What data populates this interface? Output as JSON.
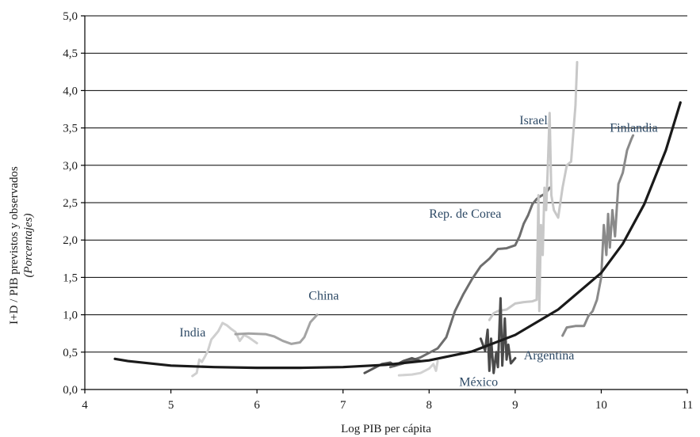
{
  "chart_data": {
    "type": "line",
    "xlabel": "Log PIB per cápita",
    "ylabel": "I+D / PIB previstos y observados",
    "ylabel_sub": "(Porcentajes)",
    "xlim": [
      4,
      11
    ],
    "ylim": [
      0,
      5
    ],
    "grid": true,
    "x_ticks": [
      "4",
      "5",
      "6",
      "7",
      "8",
      "9",
      "10",
      "11"
    ],
    "y_ticks": [
      "0,0",
      "0,5",
      "1,0",
      "1,5",
      "2,0",
      "2,5",
      "3,0",
      "3,5",
      "4,0",
      "4,5",
      "5,0"
    ],
    "curve": {
      "color": "#1a1a1a",
      "points": [
        [
          4.35,
          0.41
        ],
        [
          4.5,
          0.38
        ],
        [
          5,
          0.32
        ],
        [
          5.5,
          0.3
        ],
        [
          6,
          0.29
        ],
        [
          6.5,
          0.29
        ],
        [
          7,
          0.3
        ],
        [
          7.5,
          0.33
        ],
        [
          8,
          0.39
        ],
        [
          8.5,
          0.51
        ],
        [
          9,
          0.73
        ],
        [
          9.5,
          1.07
        ],
        [
          10,
          1.56
        ],
        [
          10.25,
          1.95
        ],
        [
          10.5,
          2.48
        ],
        [
          10.75,
          3.2
        ],
        [
          10.92,
          3.84
        ]
      ]
    },
    "series": [
      {
        "name": "India",
        "color": "#cfcfcf",
        "label_pos": [
          5.1,
          0.71
        ],
        "points": [
          [
            5.25,
            0.18
          ],
          [
            5.3,
            0.22
          ],
          [
            5.33,
            0.4
          ],
          [
            5.36,
            0.37
          ],
          [
            5.4,
            0.45
          ],
          [
            5.43,
            0.52
          ],
          [
            5.47,
            0.67
          ],
          [
            5.5,
            0.71
          ],
          [
            5.55,
            0.78
          ],
          [
            5.6,
            0.89
          ],
          [
            5.65,
            0.86
          ],
          [
            5.7,
            0.81
          ],
          [
            5.75,
            0.77
          ],
          [
            5.8,
            0.65
          ],
          [
            5.85,
            0.73
          ],
          [
            5.9,
            0.7
          ],
          [
            5.95,
            0.66
          ],
          [
            6.0,
            0.62
          ]
        ]
      },
      {
        "name": "China",
        "color": "#a4a4a4",
        "label_pos": [
          6.6,
          1.2
        ],
        "points": [
          [
            5.75,
            0.74
          ],
          [
            5.9,
            0.75
          ],
          [
            6.1,
            0.74
          ],
          [
            6.2,
            0.71
          ],
          [
            6.3,
            0.65
          ],
          [
            6.4,
            0.61
          ],
          [
            6.5,
            0.63
          ],
          [
            6.55,
            0.7
          ],
          [
            6.62,
            0.9
          ],
          [
            6.7,
            1.0
          ]
        ]
      },
      {
        "name": "Rep. de Corea",
        "color": "#6e6e6e",
        "label_pos": [
          8.0,
          2.3
        ],
        "points": [
          [
            7.55,
            0.3
          ],
          [
            7.7,
            0.35
          ],
          [
            7.9,
            0.43
          ],
          [
            8.0,
            0.49
          ],
          [
            8.1,
            0.55
          ],
          [
            8.2,
            0.7
          ],
          [
            8.3,
            1.05
          ],
          [
            8.4,
            1.28
          ],
          [
            8.5,
            1.48
          ],
          [
            8.6,
            1.65
          ],
          [
            8.7,
            1.75
          ],
          [
            8.8,
            1.88
          ],
          [
            8.9,
            1.89
          ],
          [
            9.0,
            1.93
          ],
          [
            9.05,
            2.05
          ],
          [
            9.1,
            2.22
          ],
          [
            9.15,
            2.33
          ],
          [
            9.2,
            2.48
          ],
          [
            9.25,
            2.55
          ],
          [
            9.3,
            2.59
          ],
          [
            9.35,
            2.62
          ],
          [
            9.4,
            2.7
          ]
        ]
      },
      {
        "name": "Israel",
        "color": "#c8c8c8",
        "label_pos": [
          9.05,
          3.55
        ],
        "points": [
          [
            8.7,
            0.93
          ],
          [
            8.75,
            1.02
          ],
          [
            8.8,
            1.05
          ],
          [
            8.9,
            1.07
          ],
          [
            9.0,
            1.15
          ],
          [
            9.1,
            1.17
          ],
          [
            9.2,
            1.18
          ],
          [
            9.25,
            1.2
          ],
          [
            9.27,
            2.6
          ],
          [
            9.28,
            1.05
          ],
          [
            9.3,
            2.2
          ],
          [
            9.32,
            1.8
          ],
          [
            9.34,
            2.7
          ],
          [
            9.36,
            2.4
          ],
          [
            9.38,
            3.0
          ],
          [
            9.4,
            3.7
          ],
          [
            9.42,
            2.6
          ],
          [
            9.45,
            2.4
          ],
          [
            9.5,
            2.3
          ],
          [
            9.55,
            2.7
          ],
          [
            9.6,
            3.0
          ],
          [
            9.65,
            3.05
          ],
          [
            9.7,
            3.8
          ],
          [
            9.72,
            4.38
          ]
        ]
      },
      {
        "name": "Finlandia",
        "color": "#8a8a8a",
        "label_pos": [
          10.1,
          3.45
        ],
        "points": [
          [
            9.55,
            0.72
          ],
          [
            9.6,
            0.83
          ],
          [
            9.7,
            0.85
          ],
          [
            9.8,
            0.85
          ],
          [
            9.85,
            0.98
          ],
          [
            9.9,
            1.05
          ],
          [
            9.95,
            1.2
          ],
          [
            10.0,
            1.5
          ],
          [
            10.03,
            2.2
          ],
          [
            10.06,
            1.8
          ],
          [
            10.08,
            2.35
          ],
          [
            10.1,
            1.9
          ],
          [
            10.13,
            2.4
          ],
          [
            10.16,
            2.05
          ],
          [
            10.18,
            2.42
          ],
          [
            10.2,
            2.75
          ],
          [
            10.25,
            2.9
          ],
          [
            10.3,
            3.2
          ],
          [
            10.35,
            3.35
          ],
          [
            10.37,
            3.4
          ]
        ]
      },
      {
        "name": "México",
        "color": "#d2d2d2",
        "label_pos": [
          8.35,
          0.05
        ],
        "points": [
          [
            7.65,
            0.19
          ],
          [
            7.8,
            0.2
          ],
          [
            7.9,
            0.22
          ],
          [
            8.0,
            0.28
          ],
          [
            8.05,
            0.34
          ],
          [
            8.08,
            0.25
          ],
          [
            8.1,
            0.38
          ]
        ]
      },
      {
        "name": "Argentina",
        "color": "#4a4a4a",
        "label_pos": [
          9.1,
          0.4
        ],
        "points": [
          [
            8.6,
            0.68
          ],
          [
            8.65,
            0.52
          ],
          [
            8.68,
            0.8
          ],
          [
            8.7,
            0.25
          ],
          [
            8.72,
            0.68
          ],
          [
            8.75,
            0.22
          ],
          [
            8.78,
            0.5
          ],
          [
            8.8,
            0.3
          ],
          [
            8.83,
            1.22
          ],
          [
            8.85,
            0.32
          ],
          [
            8.88,
            0.95
          ],
          [
            8.9,
            0.4
          ],
          [
            8.92,
            0.6
          ],
          [
            8.95,
            0.35
          ],
          [
            9.0,
            0.42
          ]
        ]
      },
      {
        "name": "",
        "color": "#555555",
        "points": [
          [
            7.25,
            0.22
          ],
          [
            7.35,
            0.28
          ],
          [
            7.45,
            0.34
          ],
          [
            7.55,
            0.36
          ],
          [
            7.6,
            0.32
          ],
          [
            7.7,
            0.38
          ],
          [
            7.8,
            0.42
          ],
          [
            7.9,
            0.38
          ]
        ]
      }
    ]
  }
}
